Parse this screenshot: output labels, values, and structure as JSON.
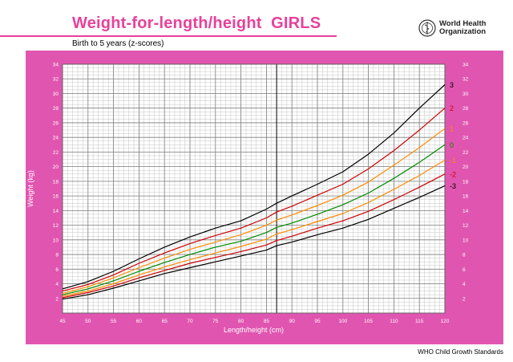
{
  "header": {
    "title": "Weight-for-length/height  GIRLS",
    "subtitle": "Birth to 5 years (z-scores)",
    "org_line1": "World Health",
    "org_line2": "Organization",
    "logo_icon": "who-emblem-icon"
  },
  "footer": {
    "text": "WHO Child Growth Standards"
  },
  "colors": {
    "panel": "#e055b0",
    "grid": "#9a9a9a",
    "z3": "#000000",
    "z2": "#cc0000",
    "z1": "#ff8c00",
    "z0": "#008a00"
  },
  "chart_data": {
    "type": "line",
    "xlabel": "Length/height (cm)",
    "ylabel": "Weight (kg)",
    "xlim": [
      45,
      120
    ],
    "ylim": [
      0,
      34
    ],
    "x_ticks": [
      45,
      50,
      55,
      60,
      65,
      70,
      75,
      80,
      85,
      90,
      95,
      100,
      105,
      110,
      115,
      120
    ],
    "y_ticks": [
      2,
      4,
      6,
      8,
      10,
      12,
      14,
      16,
      18,
      20,
      22,
      24,
      26,
      28,
      30,
      32,
      34
    ],
    "grid": true,
    "divider_x": 87,
    "x": [
      45,
      50,
      55,
      60,
      65,
      70,
      75,
      80,
      85,
      87,
      90,
      95,
      100,
      105,
      110,
      115,
      120
    ],
    "series": [
      {
        "name": "3",
        "color": "#000000",
        "values": [
          3.3,
          4.3,
          5.7,
          7.4,
          9.0,
          10.4,
          11.6,
          12.6,
          14.2,
          15.0,
          16.0,
          17.6,
          19.3,
          21.7,
          24.6,
          28.0,
          31.2
        ]
      },
      {
        "name": "2",
        "color": "#cc0000",
        "values": [
          3.0,
          3.9,
          5.2,
          6.8,
          8.2,
          9.5,
          10.6,
          11.6,
          13.0,
          13.8,
          14.6,
          16.1,
          17.6,
          19.7,
          22.2,
          25.0,
          28.0
        ]
      },
      {
        "name": "1",
        "color": "#ff8c00",
        "values": [
          2.7,
          3.6,
          4.8,
          6.2,
          7.5,
          8.7,
          9.7,
          10.7,
          12.0,
          12.7,
          13.4,
          14.7,
          16.1,
          17.9,
          20.2,
          22.6,
          25.2
        ]
      },
      {
        "name": "0",
        "color": "#008a00",
        "values": [
          2.5,
          3.3,
          4.4,
          5.7,
          6.9,
          8.0,
          9.0,
          9.8,
          11.0,
          11.7,
          12.3,
          13.5,
          14.8,
          16.4,
          18.4,
          20.6,
          23.0
        ]
      },
      {
        "name": "-1",
        "color": "#ff8c00",
        "values": [
          2.3,
          3.0,
          4.0,
          5.2,
          6.3,
          7.3,
          8.2,
          9.1,
          10.1,
          10.8,
          11.4,
          12.5,
          13.6,
          15.1,
          16.9,
          18.8,
          20.9
        ]
      },
      {
        "name": "-2",
        "color": "#cc0000",
        "values": [
          2.1,
          2.8,
          3.7,
          4.8,
          5.8,
          6.8,
          7.6,
          8.4,
          9.3,
          9.9,
          10.5,
          11.6,
          12.6,
          13.9,
          15.5,
          17.2,
          19.0
        ]
      },
      {
        "name": "-3",
        "color": "#000000",
        "values": [
          1.9,
          2.5,
          3.4,
          4.4,
          5.4,
          6.2,
          7.0,
          7.8,
          8.6,
          9.2,
          9.7,
          10.7,
          11.6,
          12.8,
          14.3,
          15.8,
          17.4
        ]
      }
    ]
  }
}
